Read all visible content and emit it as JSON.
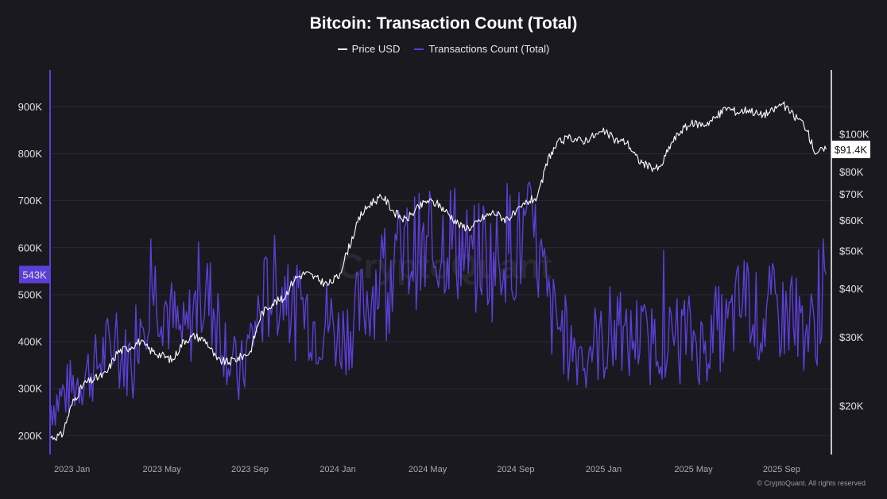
{
  "title": "Bitcoin: Transaction Count (Total)",
  "copyright": "© CryptoQuant. All rights reserved",
  "watermark": "CryptoQuant",
  "colors": {
    "background": "#1a191f",
    "price": "#ffffff",
    "transactions": "#5b3fd6",
    "tx_badge": "#5b3fd6",
    "price_badge_bg": "#ffffff",
    "price_badge_text": "#111111",
    "grid": "#2b2a32",
    "left_axis_line": "#5b3fd6",
    "right_axis_line": "#ffffff"
  },
  "chart_data": {
    "type": "line",
    "title": "Bitcoin: Transaction Count (Total)",
    "legend": [
      "Price USD",
      "Transactions Count (Total)"
    ],
    "legend_position": "top-center",
    "x_ticks": [
      "2023 Jan",
      "2023 May",
      "2023 Sep",
      "2024 Jan",
      "2024 May",
      "2024 Sep",
      "2025 Jan",
      "2025 May",
      "2025 Sep"
    ],
    "x_tick_months": [
      0,
      4,
      8,
      12,
      16,
      20,
      24,
      28,
      32
    ],
    "x_range_months": [
      0,
      35.2
    ],
    "left_axis": {
      "label": "Transactions Count (Total)",
      "ylim": [
        160000,
        975000
      ],
      "ticks": [
        200000,
        300000,
        400000,
        500000,
        600000,
        700000,
        800000,
        900000
      ],
      "tick_labels": [
        "200K",
        "300K",
        "400K",
        "500K",
        "600K",
        "700K",
        "800K",
        "900K"
      ],
      "current_value": 543000,
      "current_label": "543K"
    },
    "right_axis": {
      "label": "Price USD",
      "scale": "log",
      "ylim": [
        15000,
        145000
      ],
      "ticks": [
        20000,
        30000,
        40000,
        50000,
        60000,
        70000,
        80000,
        100000
      ],
      "tick_labels": [
        "$20K",
        "$30K",
        "$40K",
        "$50K",
        "$60K",
        "$70K",
        "$80K",
        "$100K"
      ],
      "current_value": 91400,
      "current_label": "$91.4K"
    },
    "series": [
      {
        "name": "Price USD",
        "axis": "right",
        "points": [
          [
            0.0,
            16600
          ],
          [
            0.5,
            16800
          ],
          [
            1.0,
            20500
          ],
          [
            1.5,
            22800
          ],
          [
            2.0,
            23500
          ],
          [
            2.5,
            24200
          ],
          [
            3.0,
            27500
          ],
          [
            3.5,
            28200
          ],
          [
            4.0,
            29300
          ],
          [
            4.5,
            27800
          ],
          [
            5.0,
            27000
          ],
          [
            5.5,
            26200
          ],
          [
            6.0,
            29400
          ],
          [
            6.5,
            30300
          ],
          [
            7.0,
            29400
          ],
          [
            7.5,
            26200
          ],
          [
            8.0,
            25900
          ],
          [
            8.5,
            26600
          ],
          [
            9.0,
            27500
          ],
          [
            9.5,
            34500
          ],
          [
            10.0,
            36800
          ],
          [
            10.5,
            37700
          ],
          [
            11.0,
            42500
          ],
          [
            11.5,
            44000
          ],
          [
            12.0,
            42500
          ],
          [
            12.5,
            41000
          ],
          [
            13.0,
            43200
          ],
          [
            13.5,
            52000
          ],
          [
            14.0,
            62000
          ],
          [
            14.5,
            67000
          ],
          [
            15.0,
            69000
          ],
          [
            15.5,
            63000
          ],
          [
            16.0,
            60000
          ],
          [
            16.5,
            64000
          ],
          [
            17.0,
            67500
          ],
          [
            17.5,
            66000
          ],
          [
            18.0,
            62000
          ],
          [
            18.5,
            58000
          ],
          [
            19.0,
            57500
          ],
          [
            19.5,
            61000
          ],
          [
            20.0,
            63000
          ],
          [
            20.5,
            60500
          ],
          [
            21.0,
            62500
          ],
          [
            21.5,
            67000
          ],
          [
            22.0,
            69000
          ],
          [
            22.5,
            88000
          ],
          [
            23.0,
            96000
          ],
          [
            23.5,
            98000
          ],
          [
            24.0,
            96000
          ],
          [
            24.5,
            99000
          ],
          [
            25.0,
            101500
          ],
          [
            25.5,
            96500
          ],
          [
            26.0,
            95500
          ],
          [
            26.5,
            86000
          ],
          [
            27.0,
            82500
          ],
          [
            27.5,
            81500
          ],
          [
            28.0,
            94500
          ],
          [
            28.5,
            103000
          ],
          [
            29.0,
            106500
          ],
          [
            29.5,
            106000
          ],
          [
            30.0,
            110000
          ],
          [
            30.5,
            117000
          ],
          [
            31.0,
            114000
          ],
          [
            31.5,
            116000
          ],
          [
            32.0,
            112000
          ],
          [
            32.5,
            114000
          ],
          [
            33.0,
            120000
          ],
          [
            33.5,
            112000
          ],
          [
            34.0,
            106500
          ],
          [
            34.5,
            90000
          ],
          [
            35.0,
            91400
          ]
        ]
      },
      {
        "name": "Transactions Count (Total)",
        "axis": "left",
        "points": [
          [
            0.0,
            265000
          ],
          [
            0.5,
            285000
          ],
          [
            1.0,
            305000
          ],
          [
            1.5,
            330000
          ],
          [
            2.0,
            345000
          ],
          [
            2.5,
            380000
          ],
          [
            3.0,
            370000
          ],
          [
            3.5,
            360000
          ],
          [
            4.0,
            445000
          ],
          [
            4.5,
            520000
          ],
          [
            5.0,
            500000
          ],
          [
            5.5,
            440000
          ],
          [
            6.0,
            400000
          ],
          [
            6.5,
            470000
          ],
          [
            7.0,
            500000
          ],
          [
            7.5,
            460000
          ],
          [
            8.0,
            380000
          ],
          [
            8.5,
            315000
          ],
          [
            9.0,
            400000
          ],
          [
            9.5,
            470000
          ],
          [
            10.0,
            520000
          ],
          [
            10.5,
            510000
          ],
          [
            11.0,
            460000
          ],
          [
            11.5,
            470000
          ],
          [
            12.0,
            430000
          ],
          [
            12.5,
            450000
          ],
          [
            13.0,
            410000
          ],
          [
            13.5,
            430000
          ],
          [
            14.0,
            470000
          ],
          [
            14.5,
            510000
          ],
          [
            15.0,
            550000
          ],
          [
            15.5,
            560000
          ],
          [
            16.0,
            580000
          ],
          [
            16.5,
            600000
          ],
          [
            17.0,
            560000
          ],
          [
            17.5,
            610000
          ],
          [
            18.0,
            630000
          ],
          [
            18.5,
            600000
          ],
          [
            19.0,
            560000
          ],
          [
            19.5,
            600000
          ],
          [
            20.0,
            560000
          ],
          [
            20.5,
            620000
          ],
          [
            21.0,
            600000
          ],
          [
            21.5,
            620000
          ],
          [
            22.0,
            590000
          ],
          [
            22.5,
            460000
          ],
          [
            23.0,
            430000
          ],
          [
            23.5,
            390000
          ],
          [
            24.0,
            380000
          ],
          [
            24.5,
            400000
          ],
          [
            25.0,
            390000
          ],
          [
            25.5,
            420000
          ],
          [
            26.0,
            390000
          ],
          [
            26.5,
            420000
          ],
          [
            27.0,
            390000
          ],
          [
            27.5,
            410000
          ],
          [
            28.0,
            400000
          ],
          [
            28.5,
            420000
          ],
          [
            29.0,
            410000
          ],
          [
            29.5,
            380000
          ],
          [
            30.0,
            430000
          ],
          [
            30.5,
            420000
          ],
          [
            31.0,
            470000
          ],
          [
            31.5,
            500000
          ],
          [
            32.0,
            430000
          ],
          [
            32.5,
            470000
          ],
          [
            33.0,
            450000
          ],
          [
            33.5,
            460000
          ],
          [
            34.0,
            430000
          ],
          [
            34.5,
            420000
          ],
          [
            35.0,
            543000
          ]
        ]
      }
    ]
  }
}
